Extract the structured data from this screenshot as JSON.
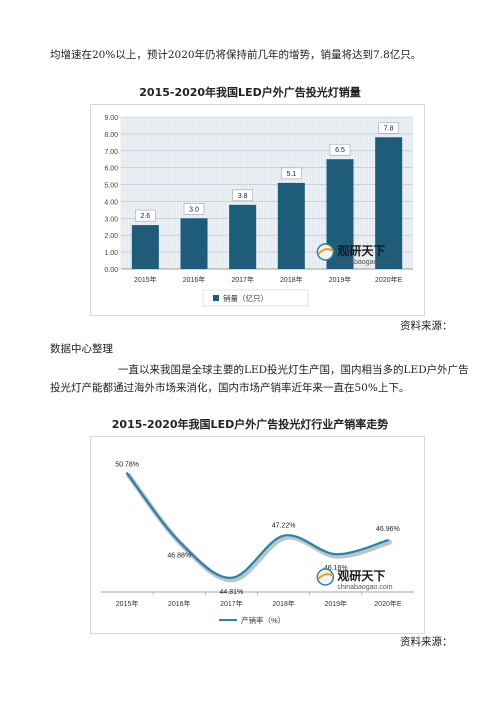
{
  "doc": {
    "line_top": "均增速在20%以上，预计2020年仍将保持前几年的增势，销量将达到7.8亿只。",
    "source_1": "资料来源：",
    "source_org": "数据中心整理",
    "para_1": "一直以来我国是全球主要的LED投光灯生产国，国内相当多的LED户外广告",
    "para_2": "投光灯产能都通过海外市场来消化，国内市场产销率近年来一直在50%上下。",
    "source_2": "资料来源："
  },
  "watermark": {
    "name": "观研天下",
    "url": "chinabaogao.com"
  },
  "chart_data": [
    {
      "type": "bar",
      "title": "2015-2020年我国LED户外广告投光灯销量",
      "categories": [
        "2015年",
        "2016年",
        "2017年",
        "2018年",
        "2019年",
        "2020年E"
      ],
      "series": [
        {
          "name": "销量（亿只）",
          "values": [
            2.6,
            3.0,
            3.8,
            5.1,
            6.5,
            7.8
          ]
        }
      ],
      "data_labels": [
        "2.6",
        "3.0",
        "3.8",
        "5.1",
        "6.5",
        "7.8"
      ],
      "yticks": [
        "0.00",
        "1.00",
        "2.00",
        "3.00",
        "4.00",
        "5.00",
        "6.00",
        "7.00",
        "8.00",
        "9.00"
      ],
      "ylim": [
        0,
        9
      ],
      "color": "#1f5c7a",
      "grid": true,
      "legend": "bottom-center"
    },
    {
      "type": "line",
      "title": "2015-2020年我国LED户外广告投光灯行业产销率走势",
      "categories": [
        "2015年",
        "2016年",
        "2017年",
        "2018年",
        "2019年",
        "2020年E"
      ],
      "series": [
        {
          "name": "产销率（%）",
          "values": [
            50.78,
            46.88,
            44.81,
            47.22,
            46.16,
            46.96
          ]
        }
      ],
      "data_labels": [
        "50.78%",
        "46.88%",
        "44.81%",
        "47.22%",
        "46.16%",
        "46.96%"
      ],
      "color": "#2e7fa0",
      "smooth": true,
      "grid": false,
      "legend": "bottom-center"
    }
  ]
}
